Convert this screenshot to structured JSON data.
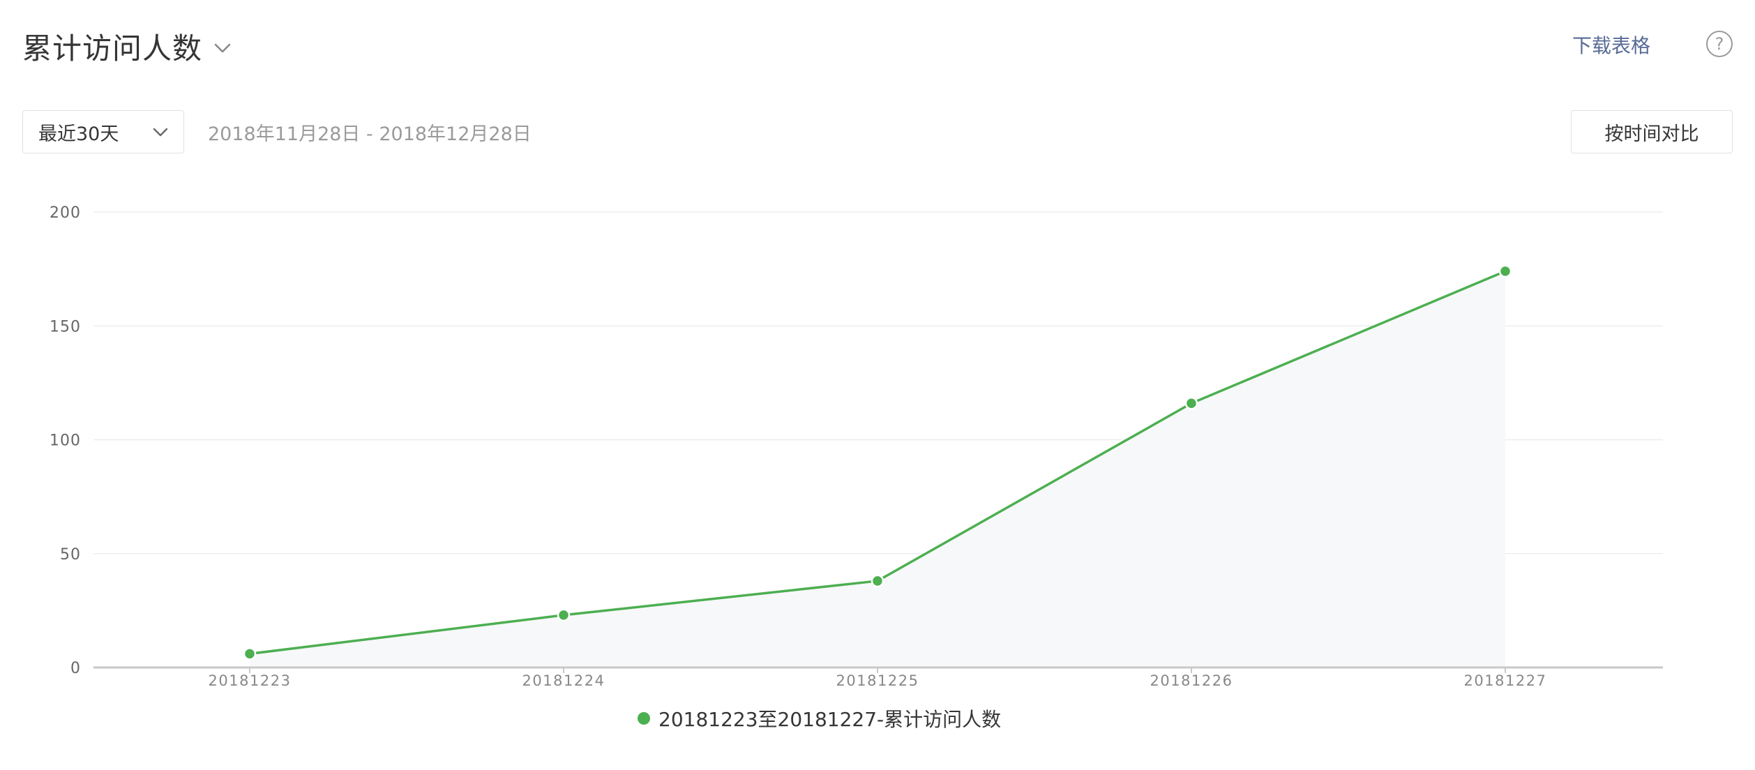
{
  "header": {
    "title": "累计访问人数",
    "download_label": "下载表格",
    "help_glyph": "?"
  },
  "controls": {
    "range_select_value": "最近30天",
    "date_range": "2018年11月28日 - 2018年12月28日",
    "compare_label": "按时间对比"
  },
  "icons": {
    "title_dropdown": "chevron-down-icon",
    "select_dropdown": "chevron-down-icon",
    "help": "question-circle-icon"
  },
  "colors": {
    "series": "#4caf50",
    "area": "#f7f8fa",
    "link": "#576b95",
    "grid": "#eeeeee",
    "axis": "#c8c8c8"
  },
  "chart_data": {
    "type": "line",
    "categories": [
      "20181223",
      "20181224",
      "20181225",
      "20181226",
      "20181227"
    ],
    "series": [
      {
        "name": "20181223至20181227-累计访问人数",
        "values": [
          6,
          23,
          38,
          116,
          174
        ]
      }
    ],
    "ylim": [
      0,
      200
    ],
    "yticks": [
      0,
      50,
      100,
      150,
      200
    ],
    "area_fill": true,
    "grid": true,
    "legend": "bottom-center",
    "title": "",
    "xlabel": "",
    "ylabel": ""
  }
}
